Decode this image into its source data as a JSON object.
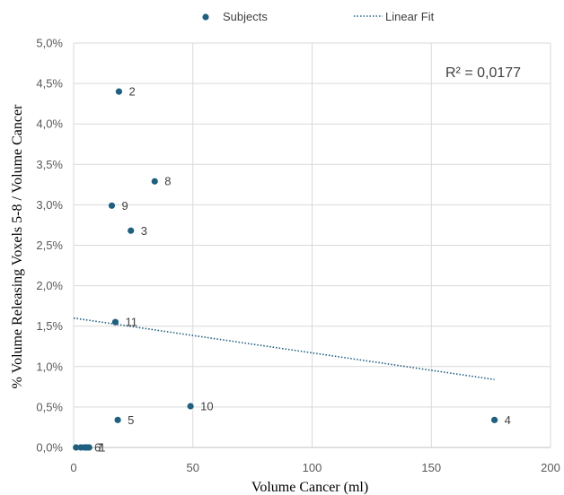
{
  "chart_data": {
    "type": "scatter",
    "xlabel": "Volume Cancer (ml)",
    "ylabel": "% Volume Releasing Voxels 5-8 / Volume Cancer",
    "xlim": [
      0,
      200
    ],
    "ylim": [
      0,
      5.0
    ],
    "x_ticks": [
      "0",
      "50",
      "100",
      "150",
      "200"
    ],
    "y_ticks": [
      "0,0%",
      "0,5%",
      "1,0%",
      "1,5%",
      "2,0%",
      "2,5%",
      "3,0%",
      "3,5%",
      "4,0%",
      "4,5%",
      "5,0%"
    ],
    "grid": true,
    "legend_position": "top",
    "series": [
      {
        "name": "Subjects",
        "color": "#1f5f7f",
        "points": [
          {
            "label": "2",
            "x": 19,
            "y": 4.4
          },
          {
            "label": "8",
            "x": 34,
            "y": 3.29
          },
          {
            "label": "9",
            "x": 16,
            "y": 2.99
          },
          {
            "label": "3",
            "x": 24,
            "y": 2.68
          },
          {
            "label": "11",
            "x": 17.5,
            "y": 1.55
          },
          {
            "label": "10",
            "x": 49,
            "y": 0.51
          },
          {
            "label": "5",
            "x": 18.5,
            "y": 0.34
          },
          {
            "label": "4",
            "x": 176.5,
            "y": 0.34
          },
          {
            "label": "",
            "x": 1,
            "y": 0.0
          },
          {
            "label": "",
            "x": 3,
            "y": 0.0
          },
          {
            "label": "6",
            "x": 4.5,
            "y": 0.0
          },
          {
            "label": "7",
            "x": 5.5,
            "y": 0.0
          },
          {
            "label": "1",
            "x": 6.5,
            "y": 0.0
          }
        ]
      }
    ],
    "fit": {
      "name": "Linear Fit",
      "color": "#1f5f7f",
      "style": "dotted",
      "x": [
        0,
        176.5
      ],
      "y": [
        1.6,
        0.84
      ]
    },
    "annotation": "R² = 0,0177"
  }
}
